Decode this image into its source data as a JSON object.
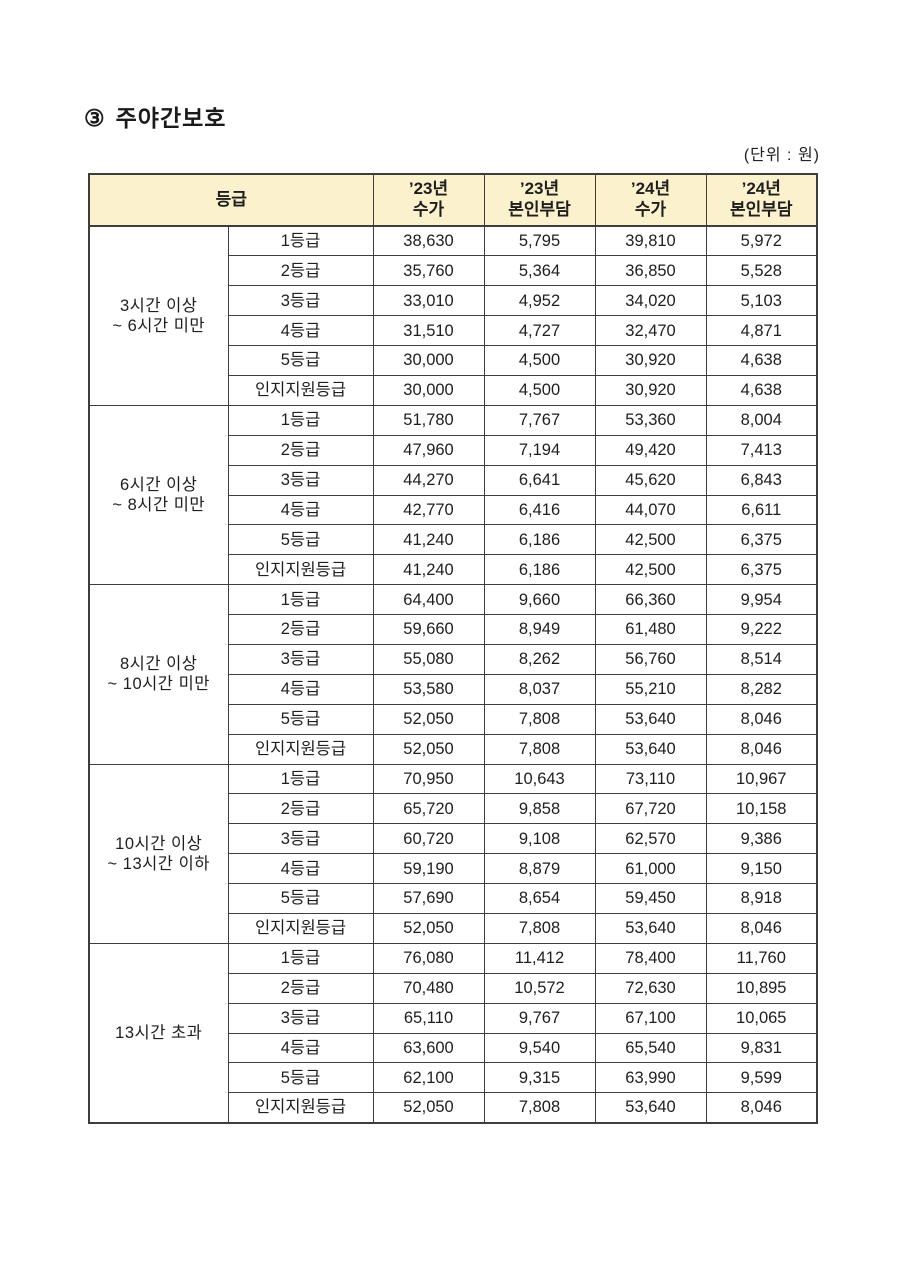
{
  "page": {
    "section_marker": "③",
    "section_title": "주야간보호",
    "unit_label": "(단위 : 원)"
  },
  "style": {
    "header_bg": "#fbf1cc",
    "border_color": "#3d3d3d",
    "text_color": "#1e1e1e",
    "page_bg": "#ffffff"
  },
  "table": {
    "header": {
      "grade_label": "등급",
      "columns": [
        {
          "line1": "’23년",
          "line2": "수가"
        },
        {
          "line1": "’23년",
          "line2": "본인부담"
        },
        {
          "line1": "’24년",
          "line2": "수가"
        },
        {
          "line1": "’24년",
          "line2": "본인부담"
        }
      ]
    },
    "groups": [
      {
        "time_range": "3시간 이상 ~ 6시간 미만",
        "time_range_lines": [
          "3시간 이상",
          "~ 6시간 미만"
        ],
        "rows": [
          {
            "grade": "1등급",
            "values": [
              "38,630",
              "5,795",
              "39,810",
              "5,972"
            ]
          },
          {
            "grade": "2등급",
            "values": [
              "35,760",
              "5,364",
              "36,850",
              "5,528"
            ]
          },
          {
            "grade": "3등급",
            "values": [
              "33,010",
              "4,952",
              "34,020",
              "5,103"
            ]
          },
          {
            "grade": "4등급",
            "values": [
              "31,510",
              "4,727",
              "32,470",
              "4,871"
            ]
          },
          {
            "grade": "5등급",
            "values": [
              "30,000",
              "4,500",
              "30,920",
              "4,638"
            ]
          },
          {
            "grade": "인지지원등급",
            "values": [
              "30,000",
              "4,500",
              "30,920",
              "4,638"
            ]
          }
        ]
      },
      {
        "time_range": "6시간 이상 ~ 8시간 미만",
        "time_range_lines": [
          "6시간 이상",
          "~ 8시간 미만"
        ],
        "rows": [
          {
            "grade": "1등급",
            "values": [
              "51,780",
              "7,767",
              "53,360",
              "8,004"
            ]
          },
          {
            "grade": "2등급",
            "values": [
              "47,960",
              "7,194",
              "49,420",
              "7,413"
            ]
          },
          {
            "grade": "3등급",
            "values": [
              "44,270",
              "6,641",
              "45,620",
              "6,843"
            ]
          },
          {
            "grade": "4등급",
            "values": [
              "42,770",
              "6,416",
              "44,070",
              "6,611"
            ]
          },
          {
            "grade": "5등급",
            "values": [
              "41,240",
              "6,186",
              "42,500",
              "6,375"
            ]
          },
          {
            "grade": "인지지원등급",
            "values": [
              "41,240",
              "6,186",
              "42,500",
              "6,375"
            ]
          }
        ]
      },
      {
        "time_range": "8시간 이상 ~ 10시간 미만",
        "time_range_lines": [
          "8시간 이상",
          "~ 10시간 미만"
        ],
        "rows": [
          {
            "grade": "1등급",
            "values": [
              "64,400",
              "9,660",
              "66,360",
              "9,954"
            ]
          },
          {
            "grade": "2등급",
            "values": [
              "59,660",
              "8,949",
              "61,480",
              "9,222"
            ]
          },
          {
            "grade": "3등급",
            "values": [
              "55,080",
              "8,262",
              "56,760",
              "8,514"
            ]
          },
          {
            "grade": "4등급",
            "values": [
              "53,580",
              "8,037",
              "55,210",
              "8,282"
            ]
          },
          {
            "grade": "5등급",
            "values": [
              "52,050",
              "7,808",
              "53,640",
              "8,046"
            ]
          },
          {
            "grade": "인지지원등급",
            "values": [
              "52,050",
              "7,808",
              "53,640",
              "8,046"
            ]
          }
        ]
      },
      {
        "time_range": "10시간 이상 ~ 13시간 이하",
        "time_range_lines": [
          "10시간 이상",
          "~ 13시간 이하"
        ],
        "rows": [
          {
            "grade": "1등급",
            "values": [
              "70,950",
              "10,643",
              "73,110",
              "10,967"
            ]
          },
          {
            "grade": "2등급",
            "values": [
              "65,720",
              "9,858",
              "67,720",
              "10,158"
            ]
          },
          {
            "grade": "3등급",
            "values": [
              "60,720",
              "9,108",
              "62,570",
              "9,386"
            ]
          },
          {
            "grade": "4등급",
            "values": [
              "59,190",
              "8,879",
              "61,000",
              "9,150"
            ]
          },
          {
            "grade": "5등급",
            "values": [
              "57,690",
              "8,654",
              "59,450",
              "8,918"
            ]
          },
          {
            "grade": "인지지원등급",
            "values": [
              "52,050",
              "7,808",
              "53,640",
              "8,046"
            ]
          }
        ]
      },
      {
        "time_range": "13시간 초과",
        "time_range_lines": [
          "13시간 초과"
        ],
        "rows": [
          {
            "grade": "1등급",
            "values": [
              "76,080",
              "11,412",
              "78,400",
              "11,760"
            ]
          },
          {
            "grade": "2등급",
            "values": [
              "70,480",
              "10,572",
              "72,630",
              "10,895"
            ]
          },
          {
            "grade": "3등급",
            "values": [
              "65,110",
              "9,767",
              "67,100",
              "10,065"
            ]
          },
          {
            "grade": "4등급",
            "values": [
              "63,600",
              "9,540",
              "65,540",
              "9,831"
            ]
          },
          {
            "grade": "5등급",
            "values": [
              "62,100",
              "9,315",
              "63,990",
              "9,599"
            ]
          },
          {
            "grade": "인지지원등급",
            "values": [
              "52,050",
              "7,808",
              "53,640",
              "8,046"
            ]
          }
        ]
      }
    ]
  }
}
